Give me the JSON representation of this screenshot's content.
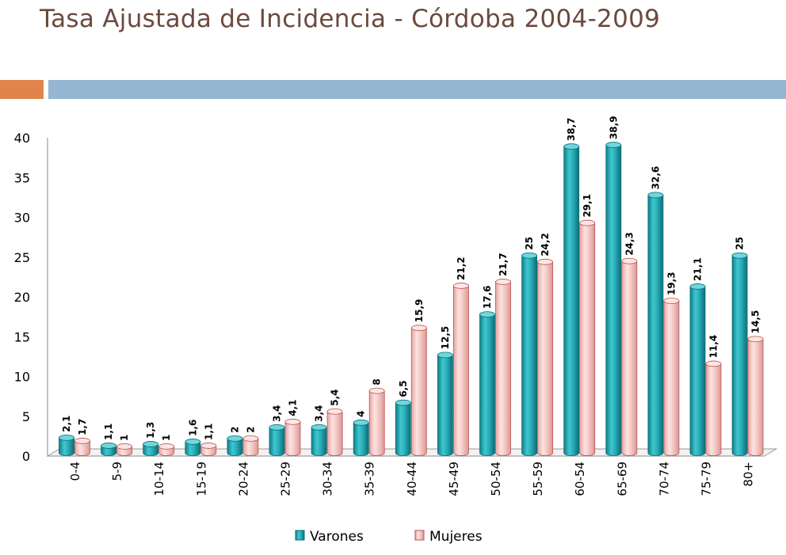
{
  "title": "Tasa Ajustada de Incidencia - Córdoba 2004-2009",
  "colors": {
    "accent_orange": "#e0844c",
    "accent_blue": "#94b6d2",
    "varones": "#2bb3bd",
    "mujeres": "#f4c9c7"
  },
  "chart_data": {
    "type": "bar",
    "style": "3d-cylinder",
    "categories": [
      "0-4",
      "5-9",
      "10-14",
      "15-19",
      "20-24",
      "25-29",
      "30-34",
      "35-39",
      "40-44",
      "45-49",
      "50-54",
      "55-59",
      "60-54",
      "65-69",
      "70-74",
      "75-79",
      "80+"
    ],
    "series": [
      {
        "name": "Varones",
        "values": [
          2.1,
          1.1,
          1.3,
          1.6,
          2,
          3.4,
          3.4,
          4,
          6.5,
          12.5,
          17.6,
          25,
          38.7,
          38.9,
          32.6,
          21.1,
          25
        ],
        "labels": [
          "2,1",
          "1,1",
          "1,3",
          "1,6",
          "2",
          "3,4",
          "3,4",
          "4",
          "6,5",
          "12,5",
          "17,6",
          "25",
          "38,7",
          "38,9",
          "32,6",
          "21,1",
          "25"
        ]
      },
      {
        "name": "Mujeres",
        "values": [
          1.7,
          1,
          1,
          1.1,
          2,
          4.1,
          5.4,
          8,
          15.9,
          21.2,
          21.7,
          24.2,
          29.1,
          24.3,
          19.3,
          11.4,
          14.5
        ],
        "labels": [
          "1,7",
          "1",
          "1",
          "1,1",
          "2",
          "4,1",
          "5,4",
          "8",
          "15,9",
          "21,2",
          "21,7",
          "24,2",
          "29,1",
          "24,3",
          "19,3",
          "11,4",
          "14,5"
        ]
      }
    ],
    "yticks": [
      "0",
      "5",
      "10",
      "15",
      "20",
      "25",
      "30",
      "35",
      "40"
    ],
    "ylim": [
      0,
      40
    ],
    "legend_position": "bottom",
    "grid": false
  }
}
